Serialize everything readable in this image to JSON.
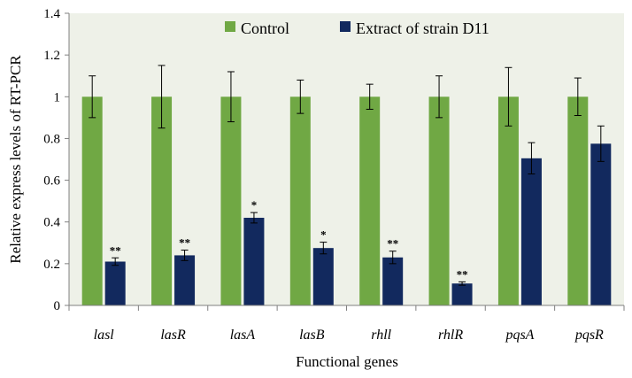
{
  "chart_data": {
    "type": "bar",
    "title": "",
    "xlabel": "Functional genes",
    "ylabel": "Relative express levels of RT-PCR",
    "ylim": [
      0,
      1.4
    ],
    "yticks": [
      "0",
      "0.2",
      "0.4",
      "0.6",
      "0.8",
      "1",
      "1.2",
      "1.4"
    ],
    "categories": [
      "lasl",
      "lasR",
      "lasA",
      "lasB",
      "rhll",
      "rhlR",
      "pqsA",
      "pqsR"
    ],
    "legend_position": "top",
    "series": [
      {
        "name": "Control",
        "color": "#70a844",
        "values": [
          1.0,
          1.0,
          1.0,
          1.0,
          1.0,
          1.0,
          1.0,
          1.0
        ],
        "errors": [
          0.1,
          0.15,
          0.12,
          0.08,
          0.06,
          0.1,
          0.14,
          0.09
        ]
      },
      {
        "name": "Extract of strain D11",
        "color": "#12295e",
        "values": [
          0.21,
          0.24,
          0.42,
          0.275,
          0.23,
          0.105,
          0.705,
          0.775
        ],
        "errors": [
          0.018,
          0.025,
          0.025,
          0.028,
          0.03,
          0.008,
          0.075,
          0.085
        ],
        "annotations": [
          "**",
          "**",
          "*",
          "*",
          "**",
          "**",
          "",
          ""
        ]
      }
    ]
  }
}
